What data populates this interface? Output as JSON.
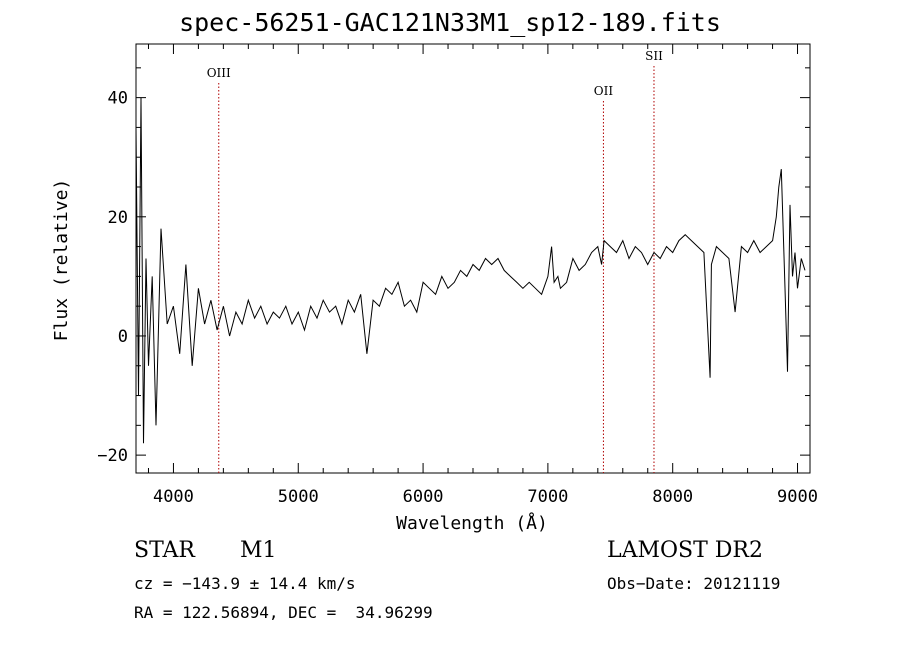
{
  "chart_data": {
    "type": "line",
    "title": "spec-56251-GAC121N33M1_sp12-189.fits",
    "xlabel": "Wavelength (Å)",
    "ylabel": "Flux (relative)",
    "xlim": [
      3700,
      9100
    ],
    "ylim": [
      -23,
      49
    ],
    "xticks": [
      4000,
      5000,
      6000,
      7000,
      8000,
      9000
    ],
    "yticks": [
      -20,
      0,
      20,
      40
    ],
    "grid": false,
    "line_color": "#000000",
    "series": [
      {
        "x": [
          3700,
          3720,
          3740,
          3760,
          3780,
          3800,
          3830,
          3860,
          3900,
          3950,
          4000,
          4050,
          4100,
          4150,
          4200,
          4250,
          4300,
          4350,
          4400,
          4450,
          4500,
          4550,
          4600,
          4650,
          4700,
          4750,
          4800,
          4850,
          4900,
          4950,
          5000,
          5050,
          5100,
          5150,
          5200,
          5250,
          5300,
          5350,
          5400,
          5450,
          5500,
          5550,
          5600,
          5650,
          5700,
          5750,
          5800,
          5850,
          5900,
          5950,
          6000,
          6050,
          6100,
          6150,
          6200,
          6250,
          6300,
          6350,
          6400,
          6450,
          6500,
          6550,
          6600,
          6650,
          6700,
          6750,
          6800,
          6850,
          6900,
          6950,
          7000,
          7030,
          7050,
          7080,
          7100,
          7150,
          7200,
          7250,
          7300,
          7350,
          7400,
          7430,
          7450,
          7500,
          7550,
          7600,
          7650,
          7700,
          7750,
          7800,
          7850,
          7900,
          7950,
          8000,
          8050,
          8100,
          8150,
          8200,
          8250,
          8300,
          8310,
          8350,
          8400,
          8450,
          8500,
          8550,
          8600,
          8650,
          8700,
          8750,
          8800,
          8830,
          8850,
          8870,
          8900,
          8920,
          8940,
          8960,
          8980,
          9000,
          9030,
          9060
        ],
        "y": [
          35,
          -10,
          40,
          -18,
          13,
          -5,
          10,
          -15,
          18,
          2,
          5,
          -3,
          12,
          -5,
          8,
          2,
          6,
          1,
          5,
          0,
          4,
          2,
          6,
          3,
          5,
          2,
          4,
          3,
          5,
          2,
          4,
          1,
          5,
          3,
          6,
          4,
          5,
          2,
          6,
          4,
          7,
          -3,
          6,
          5,
          8,
          7,
          9,
          5,
          6,
          4,
          9,
          8,
          7,
          10,
          8,
          9,
          11,
          10,
          12,
          11,
          13,
          12,
          13,
          11,
          10,
          9,
          8,
          9,
          8,
          7,
          10,
          15,
          9,
          10,
          8,
          9,
          13,
          11,
          12,
          14,
          15,
          12,
          16,
          15,
          14,
          16,
          13,
          15,
          14,
          12,
          14,
          13,
          15,
          14,
          16,
          17,
          16,
          15,
          14,
          -7,
          12,
          15,
          14,
          13,
          4,
          15,
          14,
          16,
          14,
          15,
          16,
          20,
          25,
          28,
          8,
          -6,
          22,
          10,
          14,
          8,
          13,
          11
        ]
      }
    ],
    "emission_lines": [
      {
        "label": "OIII",
        "x": 4363
      },
      {
        "label": "OII",
        "x": 7445
      },
      {
        "label": "SII",
        "x": 7850
      }
    ]
  },
  "info": {
    "object_class": "STAR",
    "subclass": "M1",
    "survey": "LAMOST DR2",
    "cz_text": "cz = −143.9 ± 14.4 km/s",
    "obs_date_text": "Obs−Date: 20121119",
    "radec_text": "RA = 122.56894, DEC =  34.96299"
  }
}
